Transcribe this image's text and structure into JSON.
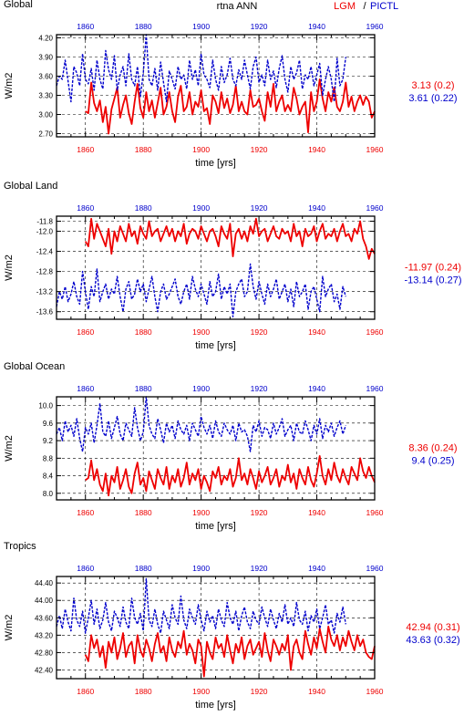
{
  "header": {
    "variable": "rtna ANN",
    "legend_lgm": "LGM",
    "legend_sep": "/",
    "legend_pictl": "PICTL"
  },
  "colors": {
    "lgm": "#ee0000",
    "pictl": "#0000cc",
    "axis": "#000000"
  },
  "chart_data": [
    {
      "type": "line",
      "title": "Global",
      "xlabel": "time [yrs]",
      "ylabel": "W/m2",
      "xlim": [
        1850,
        1960
      ],
      "ylim": [
        2.65,
        4.25
      ],
      "xticks_bottom": [
        "1860",
        "1880",
        "1900",
        "1920",
        "1940",
        "1960"
      ],
      "xticks_top": [
        "1860",
        "1880",
        "1900",
        "1920",
        "1940",
        "1960"
      ],
      "yticks": [
        "4.20",
        "3.90",
        "3.60",
        "3.30",
        "3.00",
        "2.70"
      ],
      "grid": true,
      "series": [
        {
          "name": "LGM",
          "color": "#ee0000",
          "style": "solid",
          "x_start": 1860,
          "x_end": 1960,
          "values": [
            3.05,
            3.02,
            3.5,
            3.18,
            3.05,
            3.22,
            2.88,
            3.12,
            2.7,
            3.08,
            3.25,
            3.42,
            2.95,
            3.15,
            3.3,
            3.02,
            2.85,
            3.2,
            3.48,
            3.1,
            2.95,
            3.35,
            3.05,
            3.22,
            2.95,
            3.18,
            3.42,
            3.0,
            3.12,
            3.35,
            3.05,
            2.88,
            3.28,
            3.45,
            3.05,
            3.12,
            3.35,
            3.0,
            3.2,
            3.12,
            3.38,
            3.05,
            3.1,
            2.85,
            3.3,
            3.2,
            3.02,
            3.35,
            3.1,
            3.25,
            3.02,
            3.15,
            3.45,
            3.05,
            3.2,
            3.05,
            3.0,
            3.38,
            3.12,
            3.15,
            3.25,
            3.05,
            2.9,
            3.35,
            3.12,
            3.48,
            3.05,
            3.2,
            3.3,
            3.05,
            3.15,
            3.05,
            3.42,
            3.25,
            3.0,
            3.12,
            3.2,
            2.72,
            3.35,
            3.05,
            3.2,
            3.55,
            3.25,
            3.05,
            3.35,
            3.2,
            3.42,
            3.12,
            3.05,
            3.2,
            3.5,
            3.12,
            3.28,
            3.05,
            3.2,
            3.3,
            3.15,
            3.28,
            3.2,
            2.95,
            3.05
          ]
        },
        {
          "name": "PICTL",
          "color": "#0000cc",
          "style": "dashed",
          "x_start": 1850,
          "x_end": 1950,
          "values": [
            3.45,
            3.6,
            3.55,
            3.85,
            3.52,
            3.2,
            3.75,
            3.65,
            3.45,
            3.95,
            3.55,
            3.48,
            3.72,
            3.38,
            3.85,
            3.55,
            3.4,
            4.0,
            3.7,
            3.55,
            3.92,
            3.38,
            3.62,
            3.75,
            3.45,
            3.95,
            3.55,
            3.45,
            3.75,
            3.28,
            3.65,
            4.25,
            3.55,
            3.45,
            3.72,
            3.38,
            3.82,
            3.5,
            3.2,
            3.68,
            3.55,
            3.4,
            3.75,
            3.55,
            3.62,
            3.4,
            3.85,
            3.55,
            3.7,
            3.45,
            3.95,
            3.62,
            3.55,
            3.42,
            3.85,
            3.55,
            3.38,
            3.75,
            3.5,
            3.62,
            3.88,
            3.55,
            3.45,
            3.7,
            3.55,
            3.85,
            3.62,
            3.4,
            3.75,
            3.9,
            3.5,
            3.62,
            3.45,
            3.85,
            3.55,
            3.68,
            3.42,
            3.72,
            3.92,
            3.55,
            3.35,
            3.75,
            3.55,
            3.65,
            3.85,
            3.4,
            3.62,
            3.55,
            3.75,
            3.45,
            3.62,
            3.8,
            3.3,
            3.55,
            3.75,
            3.55,
            3.2,
            3.88,
            3.45,
            3.55,
            3.9
          ]
        }
      ],
      "annotations": [
        {
          "text": "3.13 (0.2)",
          "color": "#ee0000"
        },
        {
          "text": "3.61 (0.22)",
          "color": "#0000cc"
        }
      ]
    },
    {
      "type": "line",
      "title": "Global Land",
      "xlabel": "time [yrs]",
      "ylabel": "W/m2",
      "xlim": [
        1850,
        1960
      ],
      "ylim": [
        -13.75,
        -11.7
      ],
      "xticks_bottom": [
        "1860",
        "1880",
        "1900",
        "1920",
        "1940",
        "1960"
      ],
      "xticks_top": [
        "1860",
        "1880",
        "1900",
        "1920",
        "1940",
        "1960"
      ],
      "yticks": [
        "-11.8",
        "-12.0",
        "-12.4",
        "-12.8",
        "-13.2",
        "-13.6"
      ],
      "grid": true,
      "series": [
        {
          "name": "LGM",
          "color": "#ee0000",
          "style": "solid",
          "x_start": 1860,
          "x_end": 1960,
          "values": [
            -12.2,
            -12.3,
            -11.75,
            -12.15,
            -11.85,
            -12.0,
            -12.15,
            -12.3,
            -11.95,
            -12.45,
            -12.0,
            -12.2,
            -11.9,
            -12.05,
            -12.2,
            -11.85,
            -12.1,
            -12.0,
            -12.25,
            -11.9,
            -12.05,
            -12.15,
            -11.8,
            -12.1,
            -12.0,
            -11.95,
            -12.2,
            -12.05,
            -11.9,
            -12.1,
            -11.95,
            -12.2,
            -12.0,
            -12.1,
            -11.85,
            -12.25,
            -12.05,
            -11.95,
            -12.0,
            -12.15,
            -11.9,
            -12.05,
            -12.2,
            -12.0,
            -11.95,
            -12.1,
            -12.3,
            -11.9,
            -12.05,
            -12.15,
            -11.85,
            -12.5,
            -12.05,
            -11.95,
            -12.15,
            -12.0,
            -12.2,
            -11.9,
            -12.05,
            -11.75,
            -12.1,
            -12.0,
            -11.95,
            -12.2,
            -12.05,
            -11.9,
            -12.1,
            -12.15,
            -11.95,
            -12.05,
            -12.0,
            -12.2,
            -11.85,
            -12.1,
            -12.0,
            -12.3,
            -11.95,
            -12.1,
            -12.05,
            -11.9,
            -12.2,
            -12.0,
            -11.85,
            -12.15,
            -12.05,
            -12.1,
            -11.95,
            -12.2,
            -12.0,
            -11.85,
            -12.1,
            -12.05,
            -12.2,
            -11.95,
            -12.05,
            -11.8,
            -12.15,
            -12.3,
            -12.55,
            -12.35,
            -12.45
          ]
        },
        {
          "name": "PICTL",
          "color": "#0000cc",
          "style": "dashed",
          "x_start": 1850,
          "x_end": 1950,
          "values": [
            -13.5,
            -13.2,
            -13.35,
            -13.1,
            -13.4,
            -13.25,
            -13.0,
            -13.3,
            -13.45,
            -12.8,
            -13.2,
            -13.55,
            -13.1,
            -13.3,
            -12.75,
            -13.4,
            -13.2,
            -13.05,
            -13.35,
            -13.15,
            -13.25,
            -12.9,
            -13.3,
            -13.6,
            -13.15,
            -13.0,
            -13.35,
            -13.25,
            -12.95,
            -13.2,
            -13.05,
            -13.4,
            -13.15,
            -12.9,
            -13.3,
            -13.6,
            -13.2,
            -13.05,
            -13.35,
            -13.25,
            -13.1,
            -12.95,
            -13.3,
            -13.45,
            -13.2,
            -13.05,
            -13.35,
            -12.9,
            -13.15,
            -13.3,
            -13.05,
            -13.25,
            -13.45,
            -13.0,
            -13.3,
            -13.2,
            -12.85,
            -13.35,
            -13.1,
            -13.25,
            -13.05,
            -13.7,
            -13.2,
            -13.05,
            -12.95,
            -13.3,
            -13.2,
            -12.65,
            -13.1,
            -13.35,
            -13.0,
            -13.25,
            -13.45,
            -13.05,
            -13.3,
            -13.15,
            -12.95,
            -13.35,
            -13.2,
            -13.05,
            -13.4,
            -13.15,
            -13.5,
            -13.0,
            -13.3,
            -13.2,
            -13.05,
            -13.55,
            -13.2,
            -13.1,
            -13.35,
            -13.6,
            -12.9,
            -13.3,
            -13.15,
            -13.05,
            -13.4,
            -13.25,
            -13.55,
            -13.1,
            -13.3
          ]
        }
      ],
      "annotations": [
        {
          "text": "-11.97 (0.24)",
          "color": "#ee0000"
        },
        {
          "text": "-13.14 (0.27)",
          "color": "#0000cc"
        }
      ]
    },
    {
      "type": "line",
      "title": "Global Ocean",
      "xlabel": "time [yrs]",
      "ylabel": "W/m2",
      "xlim": [
        1850,
        1960
      ],
      "ylim": [
        7.85,
        10.2
      ],
      "xticks_bottom": [
        "1860",
        "1880",
        "1900",
        "1920",
        "1940",
        "1960"
      ],
      "xticks_top": [
        "1860",
        "1880",
        "1900",
        "1920",
        "1940",
        "1960"
      ],
      "yticks": [
        "10.0",
        "9.6",
        "9.2",
        "8.8",
        "8.4",
        "8.0"
      ],
      "grid": true,
      "series": [
        {
          "name": "LGM",
          "color": "#ee0000",
          "style": "solid",
          "x_start": 1860,
          "x_end": 1960,
          "values": [
            8.3,
            8.35,
            8.75,
            8.3,
            8.55,
            8.2,
            8.05,
            8.45,
            7.95,
            8.4,
            8.25,
            8.6,
            8.1,
            8.3,
            8.55,
            8.15,
            8.0,
            8.45,
            8.7,
            8.2,
            8.35,
            8.05,
            8.5,
            8.3,
            8.1,
            8.55,
            8.35,
            8.2,
            8.6,
            8.1,
            8.4,
            8.25,
            8.55,
            8.15,
            8.35,
            8.7,
            8.2,
            8.45,
            8.3,
            8.55,
            8.1,
            8.4,
            8.25,
            8.05,
            8.5,
            8.35,
            8.6,
            8.2,
            8.4,
            8.3,
            8.55,
            8.15,
            8.35,
            8.8,
            8.3,
            8.45,
            8.2,
            8.55,
            8.35,
            8.1,
            8.5,
            8.25,
            8.4,
            8.6,
            8.2,
            8.35,
            8.55,
            8.15,
            8.4,
            8.3,
            8.65,
            8.25,
            8.45,
            8.1,
            8.55,
            8.35,
            8.2,
            8.6,
            8.3,
            8.15,
            8.45,
            8.85,
            8.4,
            8.2,
            8.55,
            8.3,
            8.7,
            8.4,
            8.25,
            8.55,
            8.35,
            8.2,
            8.6,
            8.45,
            8.3,
            8.8,
            8.5,
            8.35,
            8.6,
            8.4,
            8.25
          ]
        },
        {
          "name": "PICTL",
          "color": "#0000cc",
          "style": "dashed",
          "x_start": 1850,
          "x_end": 1950,
          "values": [
            9.35,
            9.5,
            9.2,
            9.65,
            9.4,
            9.55,
            9.3,
            9.7,
            9.25,
            8.95,
            9.5,
            9.35,
            9.6,
            9.15,
            9.55,
            10.05,
            9.4,
            9.3,
            9.65,
            9.25,
            9.5,
            9.75,
            9.35,
            9.2,
            9.6,
            9.45,
            9.3,
            9.95,
            9.5,
            9.2,
            9.4,
            10.2,
            9.55,
            9.35,
            9.25,
            9.7,
            9.45,
            9.15,
            9.6,
            9.4,
            9.55,
            9.25,
            9.65,
            9.45,
            9.35,
            9.55,
            9.2,
            9.6,
            9.45,
            9.3,
            9.75,
            9.5,
            9.35,
            9.55,
            9.25,
            9.65,
            9.4,
            9.3,
            9.6,
            9.45,
            9.35,
            9.55,
            9.2,
            9.6,
            9.4,
            9.45,
            9.3,
            8.95,
            9.55,
            9.4,
            9.65,
            9.3,
            9.5,
            9.45,
            9.25,
            9.6,
            9.35,
            9.5,
            9.7,
            9.3,
            9.45,
            9.55,
            9.2,
            9.6,
            9.4,
            9.35,
            9.65,
            9.45,
            9.2,
            9.55,
            9.35,
            9.7,
            9.25,
            9.55,
            9.4,
            9.6,
            9.3,
            9.5,
            9.65,
            9.35,
            9.55
          ]
        }
      ],
      "annotations": [
        {
          "text": "8.36 (0.24)",
          "color": "#ee0000"
        },
        {
          "text": "9.4 (0.25)",
          "color": "#0000cc"
        }
      ]
    },
    {
      "type": "line",
      "title": "Tropics",
      "xlabel": "time [yrs]",
      "ylabel": "W/m2",
      "xlim": [
        1850,
        1960
      ],
      "ylim": [
        42.2,
        44.55
      ],
      "xticks_bottom": [
        "1860",
        "1880",
        "1900",
        "1920",
        "1940",
        "1960"
      ],
      "xticks_top": [
        "1860",
        "1880",
        "1900",
        "1920",
        "1940",
        "1960"
      ],
      "yticks": [
        "44.40",
        "44.00",
        "43.60",
        "43.20",
        "42.80",
        "42.40"
      ],
      "grid": true,
      "series": [
        {
          "name": "LGM",
          "color": "#ee0000",
          "style": "solid",
          "x_start": 1860,
          "x_end": 1960,
          "values": [
            42.75,
            42.6,
            43.2,
            42.9,
            43.1,
            42.7,
            42.95,
            42.45,
            43.05,
            42.8,
            43.15,
            42.65,
            42.9,
            43.25,
            42.7,
            42.95,
            43.05,
            42.55,
            43.2,
            42.85,
            42.7,
            43.1,
            42.9,
            42.6,
            43.0,
            43.25,
            42.8,
            42.95,
            42.6,
            43.15,
            42.85,
            42.7,
            43.05,
            42.9,
            43.3,
            42.75,
            43.0,
            42.85,
            42.55,
            43.1,
            42.95,
            42.25,
            43.05,
            42.8,
            42.65,
            43.15,
            42.9,
            43.0,
            42.7,
            43.2,
            42.85,
            42.55,
            43.0,
            42.8,
            43.15,
            42.65,
            42.95,
            43.1,
            42.75,
            42.9,
            43.05,
            42.7,
            43.25,
            42.85,
            42.6,
            43.1,
            42.95,
            42.75,
            43.0,
            42.85,
            43.2,
            42.4,
            42.95,
            43.1,
            42.8,
            42.65,
            43.3,
            43.0,
            42.75,
            43.15,
            42.9,
            43.35,
            43.05,
            42.8,
            43.4,
            43.1,
            42.95,
            43.2,
            42.85,
            43.15,
            42.95,
            43.3,
            43.05,
            42.85,
            43.2,
            42.95,
            43.1,
            42.8,
            42.7,
            42.65,
            42.95
          ]
        },
        {
          "name": "PICTL",
          "color": "#0000cc",
          "style": "dashed",
          "x_start": 1850,
          "x_end": 1950,
          "values": [
            43.4,
            43.65,
            43.35,
            43.8,
            43.5,
            43.3,
            44.05,
            43.55,
            43.4,
            43.75,
            43.25,
            43.6,
            44.0,
            43.45,
            43.8,
            43.35,
            43.55,
            43.95,
            43.5,
            43.3,
            43.75,
            43.6,
            43.4,
            43.85,
            43.5,
            43.35,
            44.05,
            43.6,
            43.45,
            43.7,
            43.3,
            44.5,
            43.55,
            43.4,
            43.8,
            43.45,
            43.25,
            43.75,
            43.55,
            43.35,
            43.9,
            43.6,
            43.45,
            44.1,
            43.55,
            43.35,
            43.8,
            43.6,
            43.45,
            43.9,
            43.55,
            43.3,
            43.75,
            43.5,
            43.65,
            43.35,
            43.8,
            43.55,
            43.4,
            43.95,
            43.6,
            43.45,
            43.75,
            43.3,
            43.65,
            43.85,
            43.5,
            43.35,
            43.75,
            43.55,
            43.45,
            43.85,
            43.6,
            43.4,
            43.8,
            43.55,
            43.35,
            43.7,
            43.5,
            43.9,
            43.45,
            43.6,
            43.4,
            43.95,
            43.55,
            43.45,
            43.75,
            43.3,
            43.65,
            43.5,
            43.8,
            43.35,
            43.6,
            43.9,
            43.45,
            43.55,
            43.25,
            43.7,
            43.5,
            43.85,
            43.45
          ]
        }
      ],
      "annotations": [
        {
          "text": "42.94 (0.31)",
          "color": "#ee0000"
        },
        {
          "text": "43.63 (0.32)",
          "color": "#0000cc"
        }
      ]
    }
  ]
}
